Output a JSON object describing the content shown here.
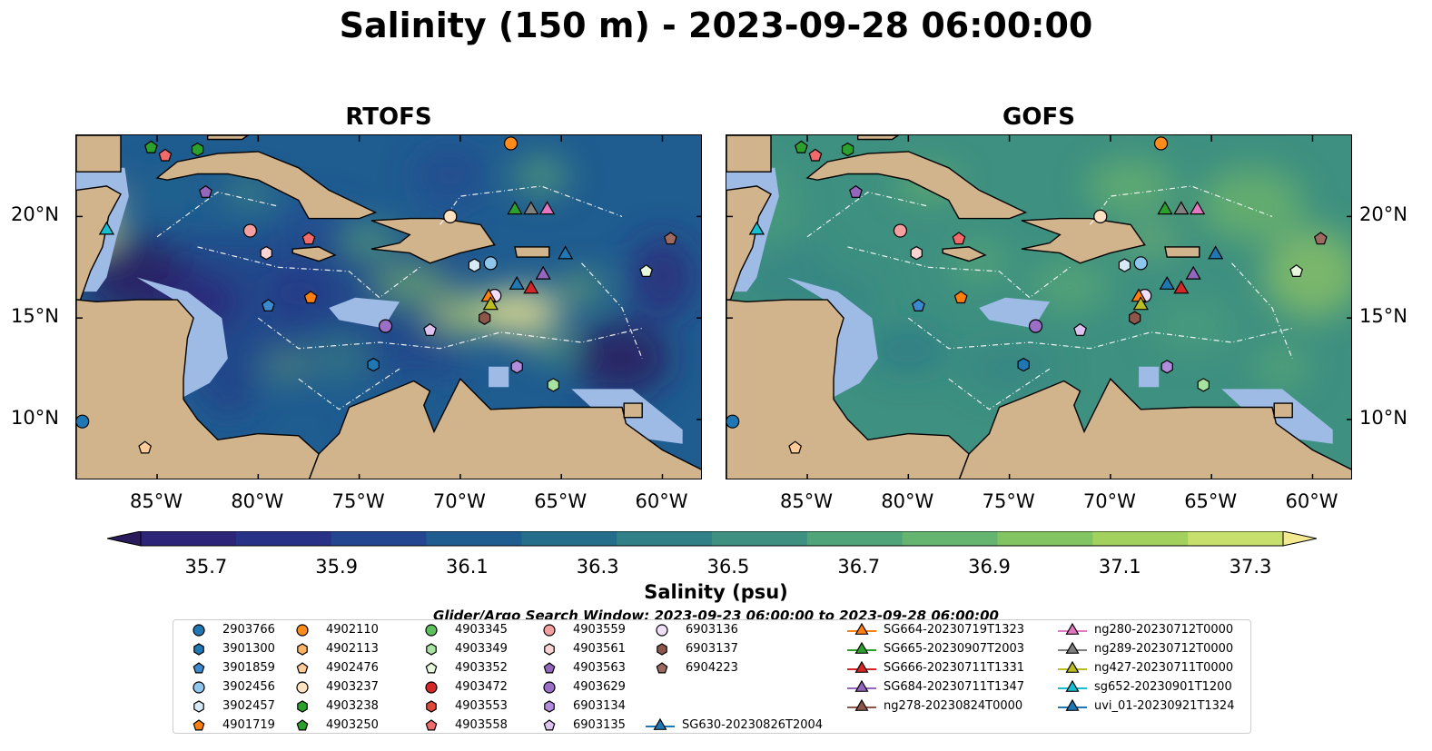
{
  "title": "Salinity (150 m) - 2023-09-28 06:00:00",
  "panels": [
    {
      "title": "RTOFS"
    },
    {
      "title": "GOFS"
    }
  ],
  "colors": {
    "land": "#d2b48c",
    "shelf": "#9ebbe6",
    "coast": "#000000",
    "eez_line": "#ffffff"
  },
  "chart_data": {
    "type": "heatmap",
    "xlabel_ticks": [
      "85°W",
      "80°W",
      "75°W",
      "70°W",
      "65°W",
      "60°W"
    ],
    "x_tick_values": [
      -85,
      -80,
      -75,
      -70,
      -65,
      -60
    ],
    "ylabel_ticks": [
      "20°N",
      "15°N",
      "10°N"
    ],
    "y_tick_values": [
      20,
      15,
      10
    ],
    "xlim": [
      -89,
      -58
    ],
    "ylim": [
      7,
      24
    ],
    "colorbar": {
      "label": "Salinity (psu)",
      "ticks": [
        "35.7",
        "35.9",
        "36.1",
        "36.3",
        "36.5",
        "36.7",
        "36.9",
        "37.1",
        "37.3"
      ],
      "tick_values": [
        35.7,
        35.9,
        36.1,
        36.3,
        36.5,
        36.7,
        36.9,
        37.1,
        37.3
      ],
      "range": [
        35.6,
        37.35
      ],
      "colors": [
        "#2a1c5c",
        "#2d2577",
        "#283286",
        "#244691",
        "#1f5c90",
        "#246e8b",
        "#2f8087",
        "#3e9080",
        "#4fa47a",
        "#65b46f",
        "#82c362",
        "#a3d15d",
        "#c7df6c",
        "#f2e991"
      ]
    },
    "title_note": "Glider/Argo Search Window: 2023-09-23 06:00:00 to 2023-09-28 06:00:00",
    "markers": [
      {
        "id": "2903766",
        "lon": -88.7,
        "lat": 9.9
      },
      {
        "id": "4903250",
        "lon": -85.3,
        "lat": 23.4
      },
      {
        "id": "4903558",
        "lon": -84.6,
        "lat": 23.0
      },
      {
        "id": "4903238",
        "lon": -83.0,
        "lat": 23.3
      },
      {
        "id": "4903563",
        "lon": -82.6,
        "lat": 21.2
      },
      {
        "id": "4903559",
        "lon": -80.4,
        "lat": 19.3
      },
      {
        "id": "sg652-20230901T1200",
        "lon": -87.5,
        "lat": 19.4
      },
      {
        "id": "4903561",
        "lon": -79.6,
        "lat": 18.2
      },
      {
        "id": "3901859",
        "lon": -79.5,
        "lat": 15.6
      },
      {
        "id": "4903558b",
        "lon": -77.5,
        "lat": 18.9
      },
      {
        "id": "4901719",
        "lon": -77.4,
        "lat": 16.0
      },
      {
        "id": "4902476",
        "lon": -85.6,
        "lat": 8.6
      },
      {
        "id": "4902110",
        "lon": -67.5,
        "lat": 23.6
      },
      {
        "id": "4903237",
        "lon": -70.5,
        "lat": 20.0
      },
      {
        "id": "SG665-20230907T2003",
        "lon": -67.3,
        "lat": 20.4
      },
      {
        "id": "ng289-20230712T0000",
        "lon": -66.5,
        "lat": 20.4
      },
      {
        "id": "ng280-20230712T0000",
        "lon": -65.7,
        "lat": 20.4
      },
      {
        "id": "3902456",
        "lon": -68.5,
        "lat": 17.7
      },
      {
        "id": "3902457",
        "lon": -69.3,
        "lat": 17.6
      },
      {
        "id": "uvi_01-20230921T1324",
        "lon": -64.8,
        "lat": 18.2
      },
      {
        "id": "6904223",
        "lon": -59.6,
        "lat": 18.9
      },
      {
        "id": "4903352",
        "lon": -60.8,
        "lat": 17.3
      },
      {
        "id": "SG684-20230711T1347",
        "lon": -65.9,
        "lat": 17.2
      },
      {
        "id": "SG630-20230826T2004",
        "lon": -67.2,
        "lat": 16.7
      },
      {
        "id": "SG666-20230711T1331",
        "lon": -66.5,
        "lat": 16.5
      },
      {
        "id": "6903136",
        "lon": -68.3,
        "lat": 16.1
      },
      {
        "id": "SG664-20230719T1323",
        "lon": -68.6,
        "lat": 16.1
      },
      {
        "id": "ng427-20230711T0000",
        "lon": -68.5,
        "lat": 15.7
      },
      {
        "id": "6903137",
        "lon": -68.8,
        "lat": 15.0
      },
      {
        "id": "4903629",
        "lon": -73.7,
        "lat": 14.6
      },
      {
        "id": "6903135",
        "lon": -71.5,
        "lat": 14.4
      },
      {
        "id": "3901300",
        "lon": -74.3,
        "lat": 12.7
      },
      {
        "id": "6903134",
        "lon": -67.2,
        "lat": 12.6
      },
      {
        "id": "4903349",
        "lon": -65.4,
        "lat": 11.7
      }
    ]
  },
  "legend": {
    "items": [
      {
        "label": "2903766",
        "shape": "circle",
        "color": "#1f77b4"
      },
      {
        "label": "3901300",
        "shape": "hexagon",
        "color": "#1f77b4"
      },
      {
        "label": "3901859",
        "shape": "pentagon",
        "color": "#3b8ad0"
      },
      {
        "label": "3902456",
        "shape": "circle",
        "color": "#8ec6ee"
      },
      {
        "label": "3902457",
        "shape": "hexagon",
        "color": "#d6ebf8"
      },
      {
        "label": "4901719",
        "shape": "pentagon",
        "color": "#ff7f0e"
      },
      {
        "label": "4902110",
        "shape": "circle",
        "color": "#ff8c1a"
      },
      {
        "label": "4902113",
        "shape": "hexagon",
        "color": "#ffb466"
      },
      {
        "label": "4902476",
        "shape": "pentagon",
        "color": "#ffcc99"
      },
      {
        "label": "4903237",
        "shape": "circle",
        "color": "#ffe2c2"
      },
      {
        "label": "4903238",
        "shape": "hexagon",
        "color": "#2ca02c"
      },
      {
        "label": "4903250",
        "shape": "pentagon",
        "color": "#2ca02c"
      },
      {
        "label": "4903345",
        "shape": "circle",
        "color": "#5cc15c"
      },
      {
        "label": "4903349",
        "shape": "hexagon",
        "color": "#a6e3a0"
      },
      {
        "label": "4903352",
        "shape": "pentagon",
        "color": "#e5f8dc"
      },
      {
        "label": "4903472",
        "shape": "circle",
        "color": "#d62728"
      },
      {
        "label": "4903553",
        "shape": "hexagon",
        "color": "#e0483a"
      },
      {
        "label": "4903558",
        "shape": "pentagon",
        "color": "#f26a6a"
      },
      {
        "label": "4903559",
        "shape": "circle",
        "color": "#f4a0a0"
      },
      {
        "label": "4903561",
        "shape": "hexagon",
        "color": "#fbd3d3"
      },
      {
        "label": "4903563",
        "shape": "pentagon",
        "color": "#9467bd"
      },
      {
        "label": "4903629",
        "shape": "circle",
        "color": "#9b6fc6"
      },
      {
        "label": "6903134",
        "shape": "hexagon",
        "color": "#b28ddb"
      },
      {
        "label": "6903135",
        "shape": "pentagon",
        "color": "#dcc3f0"
      },
      {
        "label": "6903136",
        "shape": "circle",
        "color": "#efe0f8"
      },
      {
        "label": "6903137",
        "shape": "hexagon",
        "color": "#8c564b"
      },
      {
        "label": "6904223",
        "shape": "pentagon",
        "color": "#9c6a5e"
      },
      {
        "label": "SG630-20230826T2004",
        "shape": "triangle",
        "color": "#1f77b4"
      },
      {
        "label": "SG664-20230719T1323",
        "shape": "triangle",
        "color": "#ff7f0e"
      },
      {
        "label": "SG665-20230907T2003",
        "shape": "triangle",
        "color": "#2ca02c"
      },
      {
        "label": "SG666-20230711T1331",
        "shape": "triangle",
        "color": "#d62728"
      },
      {
        "label": "SG684-20230711T1347",
        "shape": "triangle",
        "color": "#9467bd"
      },
      {
        "label": "ng278-20230824T0000",
        "shape": "triangle",
        "color": "#8c564b"
      },
      {
        "label": "ng280-20230712T0000",
        "shape": "triangle",
        "color": "#e377c2"
      },
      {
        "label": "ng289-20230712T0000",
        "shape": "triangle",
        "color": "#7f7f7f"
      },
      {
        "label": "ng427-20230711T0000",
        "shape": "triangle",
        "color": "#bcbd22"
      },
      {
        "label": "sg652-20230901T1200",
        "shape": "triangle",
        "color": "#17becf"
      },
      {
        "label": "uvi_01-20230921T1324",
        "shape": "triangle",
        "color": "#1f77b4"
      }
    ]
  }
}
